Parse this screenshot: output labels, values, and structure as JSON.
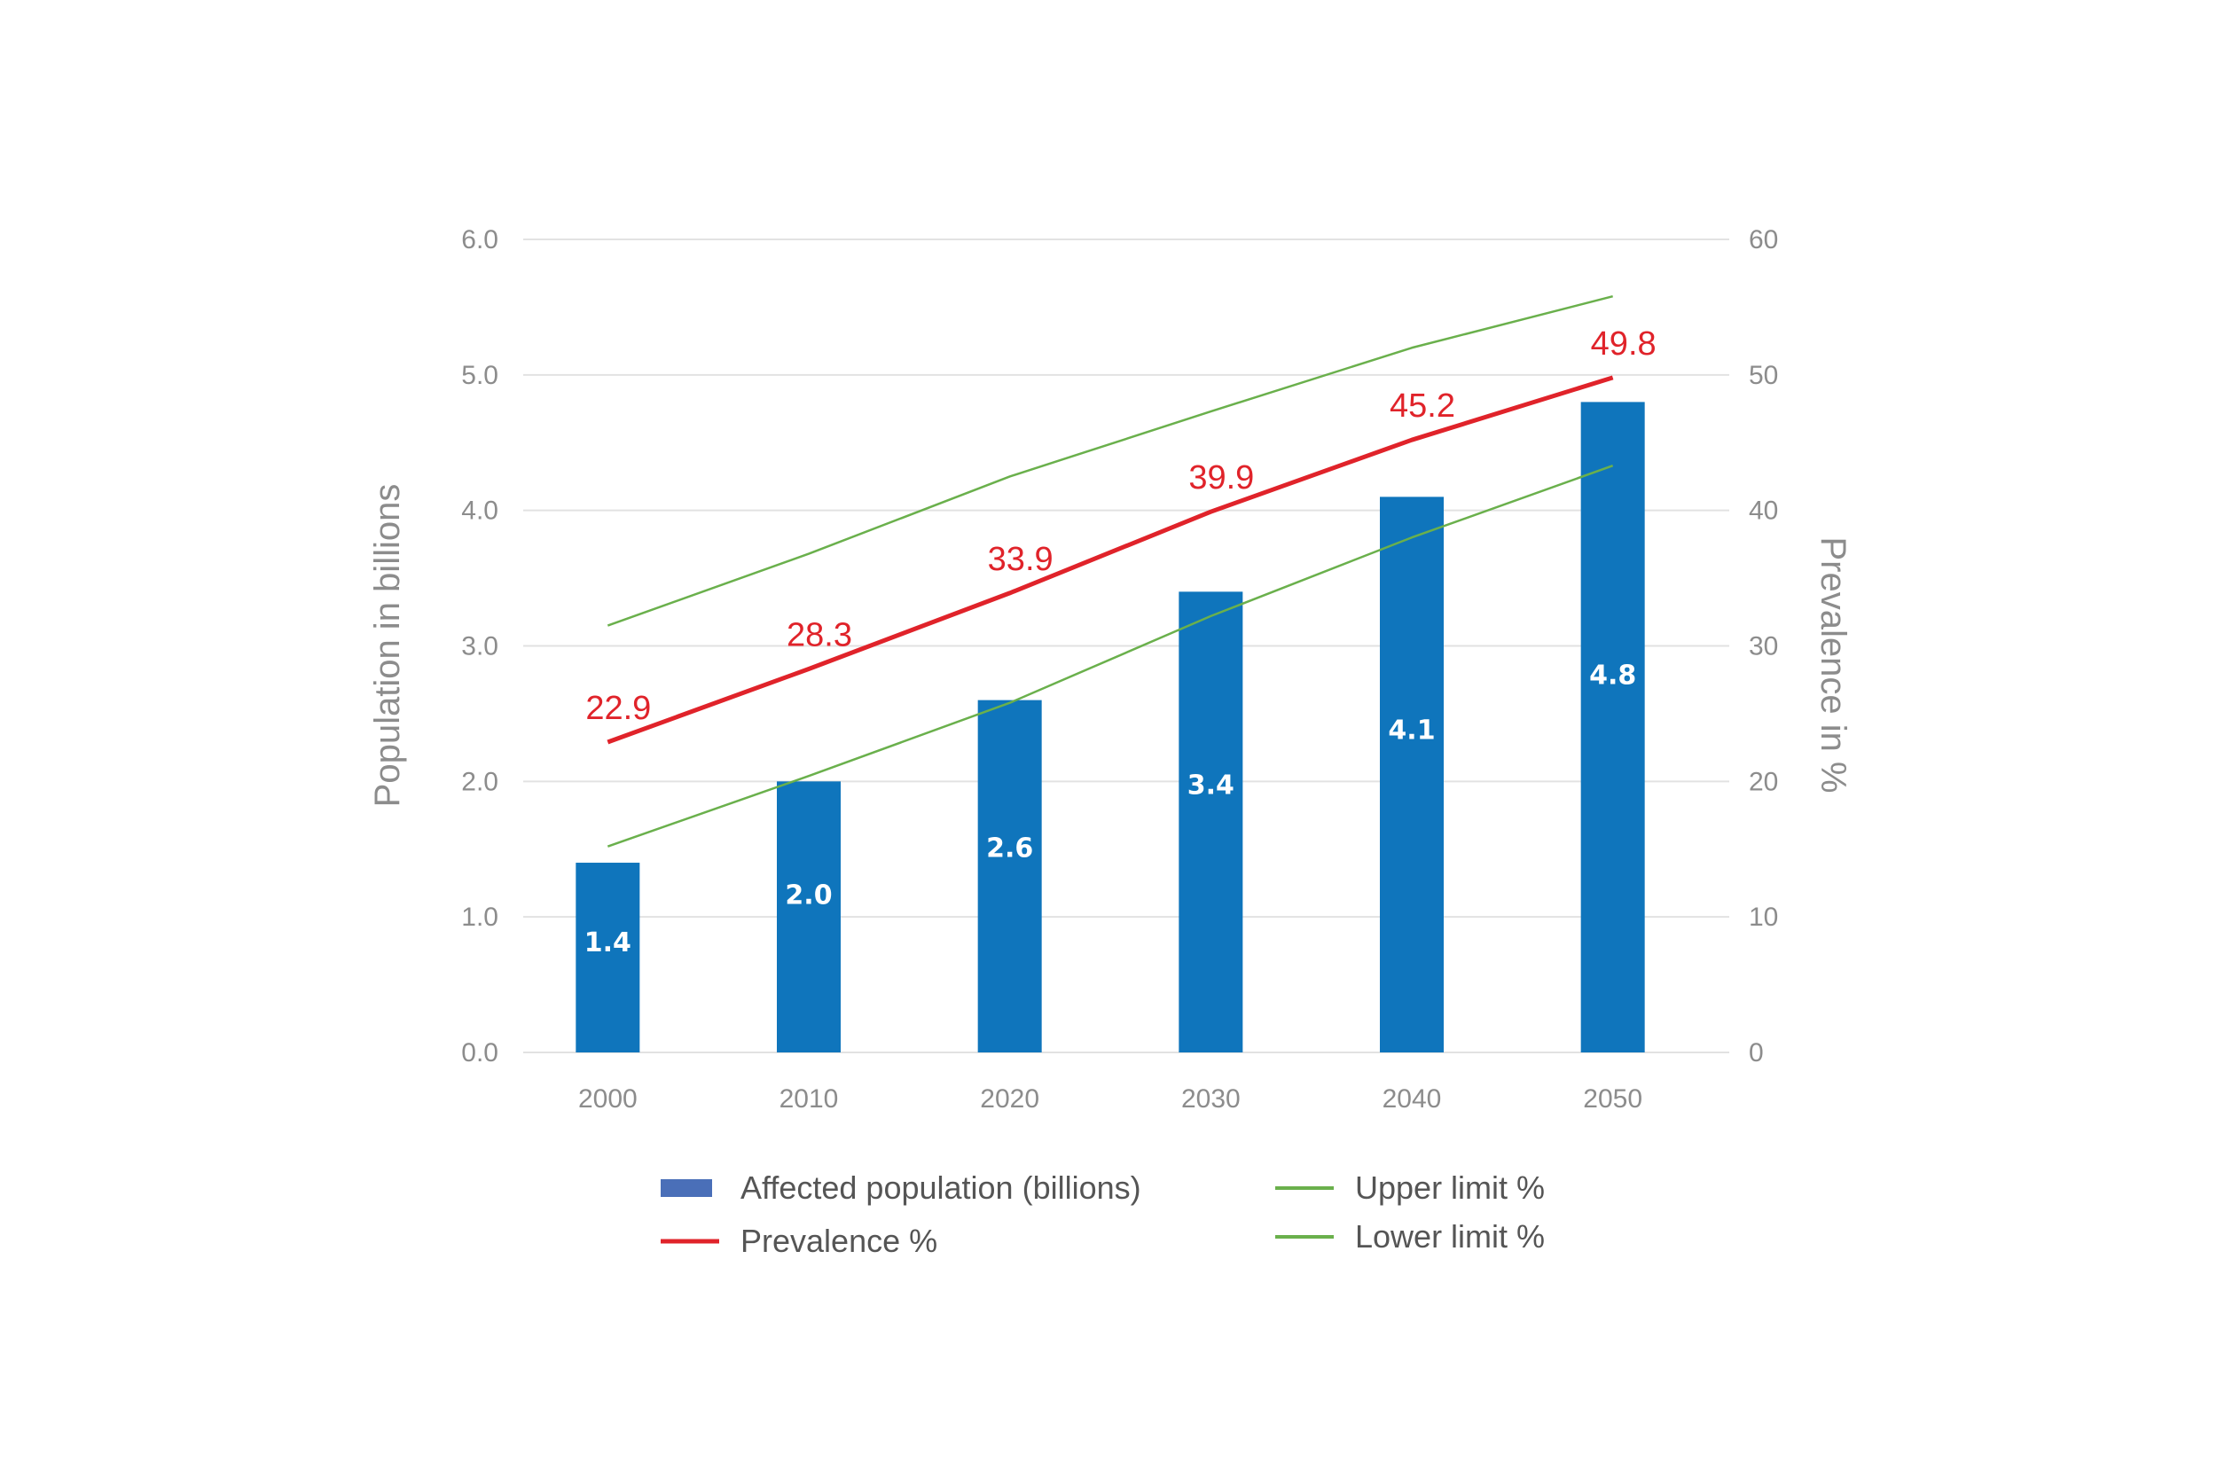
{
  "chart_data": {
    "type": "bar",
    "categories": [
      "2000",
      "2010",
      "2020",
      "2030",
      "2040",
      "2050"
    ],
    "y_left": {
      "label": "Population in billions",
      "ylim": [
        0,
        6
      ],
      "ticks": [
        "0.0",
        "1.0",
        "2.0",
        "3.0",
        "4.0",
        "5.0",
        "6.0"
      ]
    },
    "y_right": {
      "label": "Prevalence in %",
      "ylim": [
        0,
        60
      ],
      "ticks": [
        "0",
        "10",
        "20",
        "30",
        "40",
        "50",
        "60"
      ]
    },
    "series": [
      {
        "name": "Affected population (billions)",
        "type": "bar",
        "axis": "left",
        "color": "#0f75bc",
        "values": [
          1.4,
          2.0,
          2.6,
          3.4,
          4.1,
          4.8
        ],
        "value_labels": [
          "1.4",
          "2.0",
          "2.6",
          "3.4",
          "4.1",
          "4.8"
        ]
      },
      {
        "name": "Prevalence %",
        "type": "line",
        "axis": "right",
        "color": "#e0232a",
        "values": [
          22.9,
          28.3,
          33.9,
          39.9,
          45.2,
          49.8
        ],
        "value_labels": [
          "22.9",
          "28.3",
          "33.9",
          "39.9",
          "45.2",
          "49.8"
        ]
      },
      {
        "name": "Upper limit %",
        "type": "line",
        "axis": "right",
        "color": "#6ab04c",
        "values": [
          31.5,
          36.8,
          42.5,
          47.3,
          52.0,
          55.8
        ]
      },
      {
        "name": "Lower limit %",
        "type": "line",
        "axis": "right",
        "color": "#6ab04c",
        "values": [
          15.2,
          20.4,
          25.8,
          32.2,
          38.0,
          43.3
        ]
      }
    ],
    "grid": true,
    "legend_position": "bottom"
  }
}
